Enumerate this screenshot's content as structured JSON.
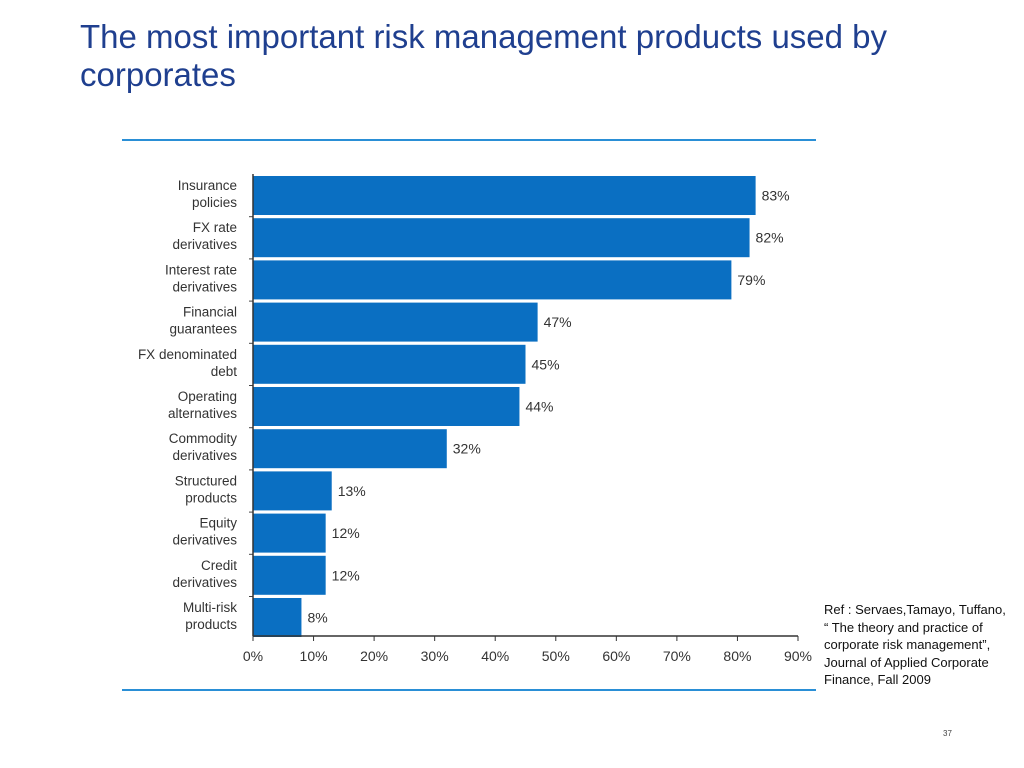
{
  "slide": {
    "title": "The most important risk management products used by corporates",
    "reference": "Ref : Servaes,Tamayo, Tuffano,  “ The theory and practice of corporate risk management”, Journal of Applied Corporate Finance, Fall 2009",
    "page_number": "37"
  },
  "colors": {
    "title": "#1f3f8f",
    "bar": "#0a6fc2",
    "rule": "#2a8fd6"
  },
  "chart_data": {
    "type": "bar",
    "orientation": "horizontal",
    "categories": [
      [
        "Insurance",
        "policies"
      ],
      [
        "FX rate",
        "derivatives"
      ],
      [
        "Interest rate",
        "derivatives"
      ],
      [
        "Financial",
        "guarantees"
      ],
      [
        "FX denominated",
        "debt"
      ],
      [
        "Operating",
        "alternatives"
      ],
      [
        "Commodity",
        "derivatives"
      ],
      [
        "Structured",
        "products"
      ],
      [
        "Equity",
        "derivatives"
      ],
      [
        "Credit",
        "derivatives"
      ],
      [
        "Multi-risk",
        "products"
      ]
    ],
    "values": [
      83,
      82,
      79,
      47,
      45,
      44,
      32,
      13,
      12,
      12,
      8
    ],
    "value_labels": [
      "83%",
      "82%",
      "79%",
      "47%",
      "45%",
      "44%",
      "32%",
      "13%",
      "12%",
      "12%",
      "8%"
    ],
    "x_ticks": [
      "0%",
      "10%",
      "20%",
      "30%",
      "40%",
      "50%",
      "60%",
      "70%",
      "80%",
      "90%"
    ],
    "xlim": [
      0,
      90
    ],
    "grid": false,
    "title": "",
    "xlabel": "",
    "ylabel": ""
  }
}
